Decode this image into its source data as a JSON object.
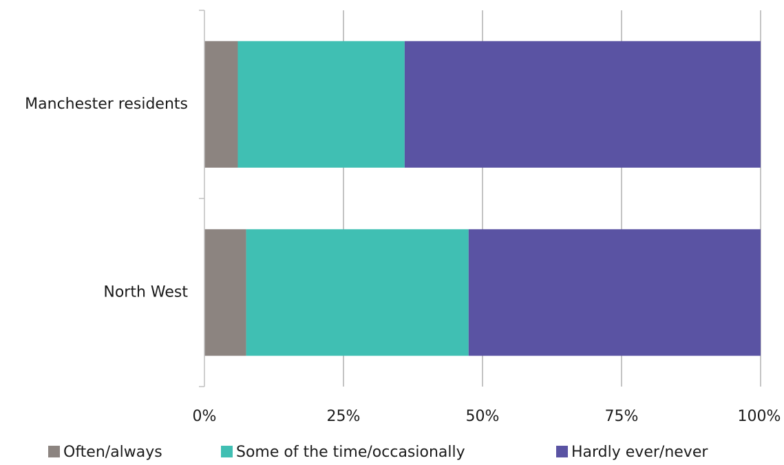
{
  "chart_data": {
    "type": "bar",
    "orientation": "horizontal",
    "stacked": true,
    "title": "",
    "xlabel": "",
    "ylabel": "",
    "categories": [
      "Manchester residents",
      "North West"
    ],
    "series": [
      {
        "name": "Often/always",
        "color": "#8c8480",
        "values": [
          6,
          7.5
        ]
      },
      {
        "name": "Some of the time/occasionally",
        "color": "#40bfb3",
        "values": [
          30,
          40
        ]
      },
      {
        "name": "Hardly ever/never",
        "color": "#5a53a3",
        "values": [
          64,
          52.5
        ]
      }
    ],
    "xlim": [
      0,
      100
    ],
    "xticks": [
      0,
      25,
      50,
      75,
      100
    ],
    "xtick_labels": [
      "0%",
      "25%",
      "50%",
      "75%",
      "100%"
    ],
    "grid": true,
    "legend_position": "bottom"
  }
}
